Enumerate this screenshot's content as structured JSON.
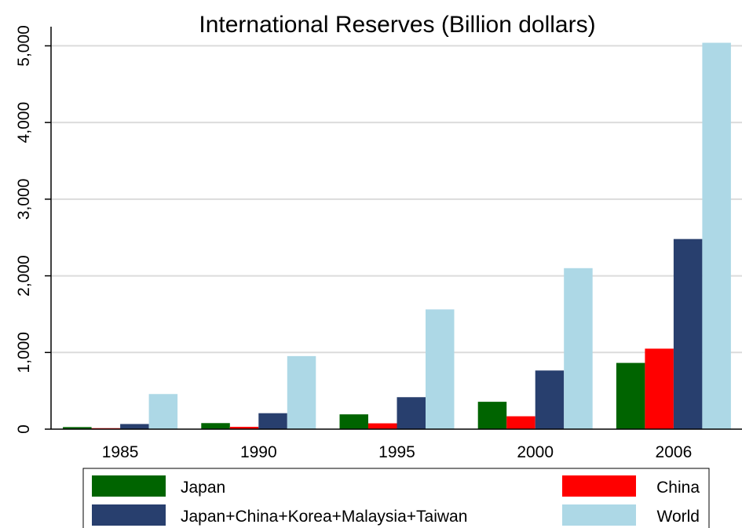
{
  "chart_data": {
    "type": "bar",
    "title": "International Reserves (Billion dollars)",
    "categories": [
      "1985",
      "1990",
      "1995",
      "2000",
      "2006"
    ],
    "series": [
      {
        "name": "Japan",
        "color": "#006400",
        "values": [
          27,
          79,
          193,
          357,
          864
        ]
      },
      {
        "name": "China",
        "color": "#ff0000",
        "values": [
          13,
          30,
          76,
          168,
          1050
        ]
      },
      {
        "name": "Japan+China+Korea+Malaysia+Taiwan",
        "color": "#283f6e",
        "values": [
          67,
          208,
          417,
          765,
          2480
        ]
      },
      {
        "name": "World",
        "color": "#add8e6",
        "values": [
          458,
          953,
          1562,
          2100,
          5040
        ]
      }
    ],
    "yticks": [
      0,
      1000,
      2000,
      3000,
      4000,
      5000
    ],
    "ytick_labels": [
      "0",
      "1,000",
      "2,000",
      "3,000",
      "4,000",
      "5,000"
    ],
    "ylim": [
      0,
      5250
    ],
    "grid": true,
    "legend": "bottom"
  }
}
